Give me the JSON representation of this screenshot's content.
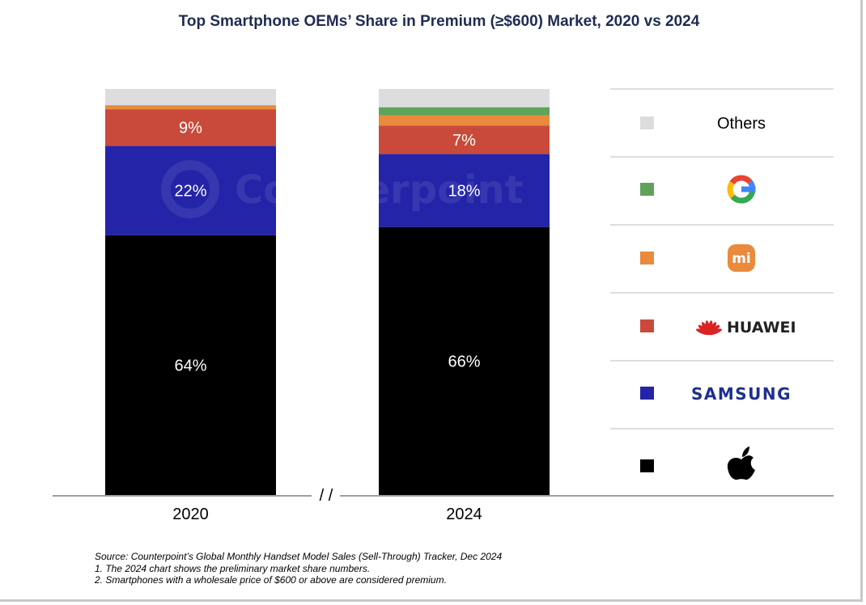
{
  "chart_data": {
    "type": "bar",
    "stacked": true,
    "title": "Top Smartphone OEMs’ Share in Premium (≥$600) Market, 2020 vs 2024",
    "categories": [
      "2020",
      "2024"
    ],
    "ylim": [
      0,
      100
    ],
    "axis_break_mark": "/ /",
    "series": [
      {
        "name": "Apple",
        "color": "#000000",
        "values": [
          64,
          66
        ]
      },
      {
        "name": "Samsung",
        "color": "#2424a8",
        "values": [
          22,
          18
        ]
      },
      {
        "name": "Huawei",
        "color": "#c94a3b",
        "values": [
          9,
          7
        ]
      },
      {
        "name": "Xiaomi",
        "color": "#e98a3d",
        "values": [
          1,
          2.5
        ]
      },
      {
        "name": "Google",
        "color": "#5fa35a",
        "values": [
          0,
          2
        ]
      },
      {
        "name": "Others",
        "color": "#dddddd",
        "values": [
          4,
          4.5
        ]
      }
    ],
    "data_labels": [
      {
        "series": "Apple",
        "labels": [
          "64%",
          "66%"
        ]
      },
      {
        "series": "Samsung",
        "labels": [
          "22%",
          "18%"
        ]
      },
      {
        "series": "Huawei",
        "labels": [
          "9%",
          "7%"
        ]
      }
    ],
    "legend": {
      "placement": "right",
      "order": [
        "Others",
        "Google",
        "Xiaomi",
        "Huawei",
        "Samsung",
        "Apple"
      ],
      "others_label": "Others",
      "huawei_logo_text": "HUAWEI",
      "samsung_logo_text": "SAMSUNG",
      "xiaomi_logo_text": "mi"
    },
    "grid": false
  },
  "watermark": "Counterpoint",
  "notes": [
    "Source: Counterpoint’s Global Monthly Handset Model Sales (Sell-Through) Tracker, Dec 2024",
    "1. The 2024 chart shows the preliminary market share numbers.",
    "2. Smartphones with a wholesale price of $600 or above are considered premium."
  ]
}
